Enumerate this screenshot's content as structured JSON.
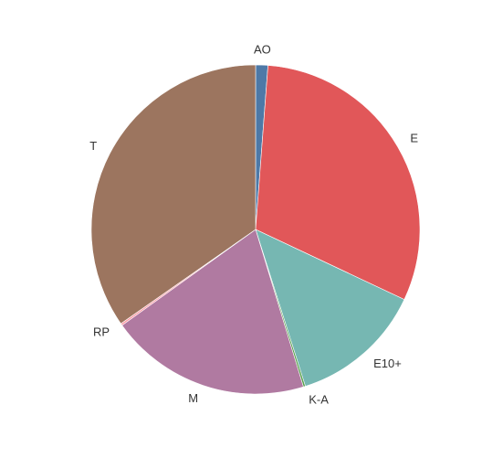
{
  "chart_data": {
    "type": "pie",
    "title": "",
    "legend": "none",
    "start_angle_deg": 0,
    "direction": "clockwise",
    "slices": [
      {
        "label": "AO",
        "value": 1.2,
        "color": "#4e79a7"
      },
      {
        "label": "E",
        "value": 30.8,
        "color": "#e15759"
      },
      {
        "label": "E10+",
        "value": 13.1,
        "color": "#76b7b2"
      },
      {
        "label": "K-A",
        "value": 0.2,
        "color": "#59a14f"
      },
      {
        "label": "M",
        "value": 19.8,
        "color": "#b07aa1"
      },
      {
        "label": "RP",
        "value": 0.2,
        "color": "#ff9da7"
      },
      {
        "label": "T",
        "value": 34.7,
        "color": "#9c755f"
      }
    ]
  }
}
